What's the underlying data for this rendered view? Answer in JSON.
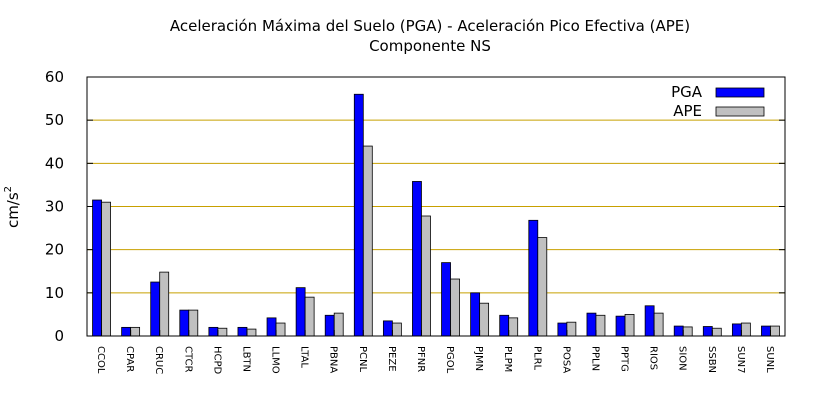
{
  "chart_data": {
    "type": "bar",
    "title": "Aceleración Máxima del Suelo (PGA) -  Aceleración Pico Efectiva (APE)",
    "subtitle": "Componente NS",
    "ylabel": "cm/s",
    "ylabel_superscript": "2",
    "xlabel": "",
    "ylim": [
      0,
      60
    ],
    "yticks": [
      0,
      10,
      20,
      30,
      40,
      50,
      60
    ],
    "grid": "horizontal",
    "legend_position": "top-right",
    "categories": [
      "CCOL",
      "CPAR",
      "CRUC",
      "CTCR",
      "HCPD",
      "LBTN",
      "LLMO",
      "LTAL",
      "PBNA",
      "PCNL",
      "PEZE",
      "PFNR",
      "PGOL",
      "PJMN",
      "PLPM",
      "PLRL",
      "POSA",
      "PPLN",
      "PPTG",
      "RIOS",
      "SION",
      "SSBN",
      "SUN7",
      "SUNL"
    ],
    "series": [
      {
        "name": "PGA",
        "color": "#0000ff",
        "values": [
          31.5,
          2.0,
          12.5,
          6.0,
          2.0,
          2.0,
          4.2,
          11.2,
          4.8,
          56.0,
          3.5,
          35.8,
          17.0,
          10.0,
          4.8,
          26.8,
          3.0,
          5.3,
          4.6,
          7.0,
          2.3,
          2.2,
          2.8,
          2.3
        ]
      },
      {
        "name": "APE",
        "color": "#c0c0c0",
        "values": [
          31.0,
          2.0,
          14.8,
          6.0,
          1.8,
          1.6,
          3.0,
          9.0,
          5.3,
          44.0,
          3.0,
          27.8,
          13.2,
          7.6,
          4.2,
          22.8,
          3.2,
          4.8,
          5.0,
          5.3,
          2.1,
          1.8,
          3.0,
          2.3
        ]
      }
    ],
    "colors": {
      "grid": "#c8a000",
      "axis": "#000000",
      "bar_edge": "#000000"
    }
  }
}
